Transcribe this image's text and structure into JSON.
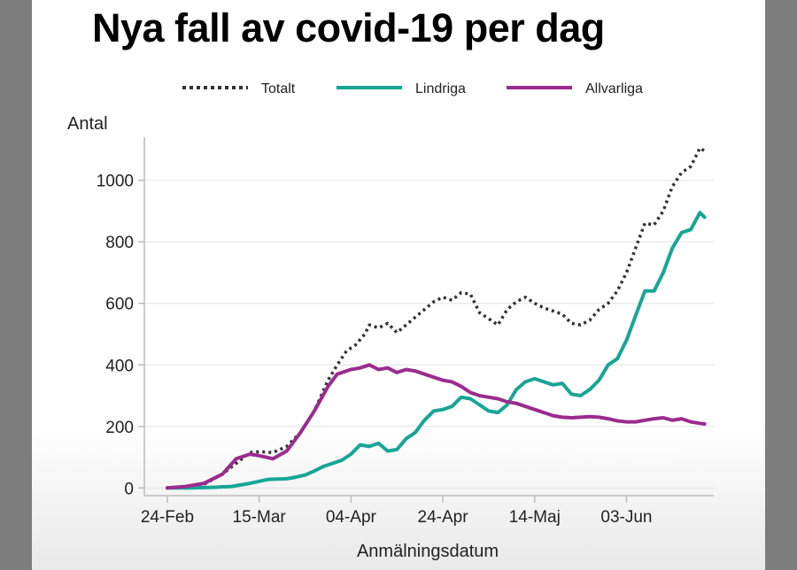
{
  "chart_data": {
    "type": "line",
    "title": "Nya fall av covid-19 per dag",
    "xlabel": "Anmälningsdatum",
    "ylabel": "Antal",
    "x_tick_labels": [
      "24-Feb",
      "15-Mar",
      "04-Apr",
      "24-Apr",
      "14-Maj",
      "03-Jun"
    ],
    "x_ticks": [
      0,
      20,
      40,
      60,
      80,
      100
    ],
    "y_ticks": [
      0,
      200,
      400,
      600,
      800,
      1000
    ],
    "xlim": [
      -5,
      119
    ],
    "ylim": [
      -25,
      1140
    ],
    "grid": "horizontal",
    "legend_position": "top",
    "series": [
      {
        "name": "Totalt",
        "color": "#333333",
        "style": "dotted",
        "x": [
          0,
          4,
          8,
          12,
          15,
          18,
          20,
          23,
          26,
          29,
          32,
          35,
          37,
          39,
          41,
          43,
          44,
          46,
          48,
          50,
          52,
          54,
          56,
          58,
          60,
          62,
          64,
          66,
          68,
          70,
          72,
          74,
          76,
          78,
          80,
          82,
          84,
          86,
          88,
          90,
          92,
          94,
          96,
          98,
          100,
          102,
          104,
          106,
          108,
          110,
          112,
          114,
          116,
          117
        ],
        "y": [
          0,
          4,
          12,
          45,
          80,
          115,
          118,
          115,
          135,
          180,
          250,
          350,
          400,
          445,
          465,
          500,
          530,
          520,
          535,
          505,
          530,
          555,
          580,
          605,
          620,
          610,
          635,
          630,
          570,
          550,
          530,
          580,
          605,
          620,
          600,
          585,
          575,
          565,
          535,
          530,
          545,
          580,
          600,
          640,
          700,
          780,
          860,
          855,
          900,
          980,
          1025,
          1045,
          1105,
          1095
        ]
      },
      {
        "name": "Lindriga",
        "color": "#17a596",
        "style": "solid",
        "x": [
          0,
          5,
          10,
          14,
          18,
          22,
          26,
          28,
          30,
          32,
          34,
          36,
          38,
          40,
          42,
          44,
          46,
          48,
          50,
          52,
          54,
          56,
          58,
          60,
          62,
          64,
          66,
          68,
          70,
          72,
          74,
          76,
          78,
          80,
          82,
          84,
          86,
          88,
          90,
          92,
          94,
          96,
          98,
          100,
          102,
          104,
          106,
          108,
          110,
          112,
          114,
          116,
          117
        ],
        "y": [
          0,
          0,
          2,
          5,
          15,
          28,
          30,
          35,
          42,
          55,
          70,
          80,
          90,
          110,
          140,
          135,
          145,
          120,
          125,
          160,
          180,
          220,
          250,
          255,
          265,
          295,
          290,
          270,
          250,
          245,
          270,
          320,
          345,
          355,
          345,
          335,
          340,
          305,
          300,
          320,
          350,
          400,
          420,
          480,
          560,
          640,
          640,
          700,
          780,
          830,
          840,
          895,
          880
        ]
      },
      {
        "name": "Allvarliga",
        "color": "#9b2c8e",
        "style": "solid",
        "x": [
          0,
          4,
          8,
          12,
          15,
          18,
          20,
          23,
          26,
          29,
          32,
          35,
          37,
          40,
          42,
          44,
          46,
          48,
          50,
          52,
          54,
          56,
          58,
          60,
          62,
          64,
          66,
          68,
          70,
          72,
          74,
          76,
          78,
          80,
          82,
          84,
          86,
          88,
          90,
          92,
          94,
          96,
          98,
          100,
          102,
          104,
          106,
          108,
          110,
          112,
          114,
          116,
          117
        ],
        "y": [
          0,
          5,
          15,
          45,
          95,
          110,
          105,
          95,
          120,
          180,
          250,
          330,
          370,
          385,
          390,
          400,
          385,
          390,
          375,
          385,
          380,
          370,
          360,
          350,
          345,
          330,
          310,
          300,
          295,
          290,
          280,
          275,
          265,
          255,
          245,
          235,
          230,
          228,
          230,
          232,
          230,
          225,
          218,
          215,
          215,
          220,
          225,
          228,
          220,
          225,
          215,
          210,
          208
        ]
      }
    ]
  }
}
